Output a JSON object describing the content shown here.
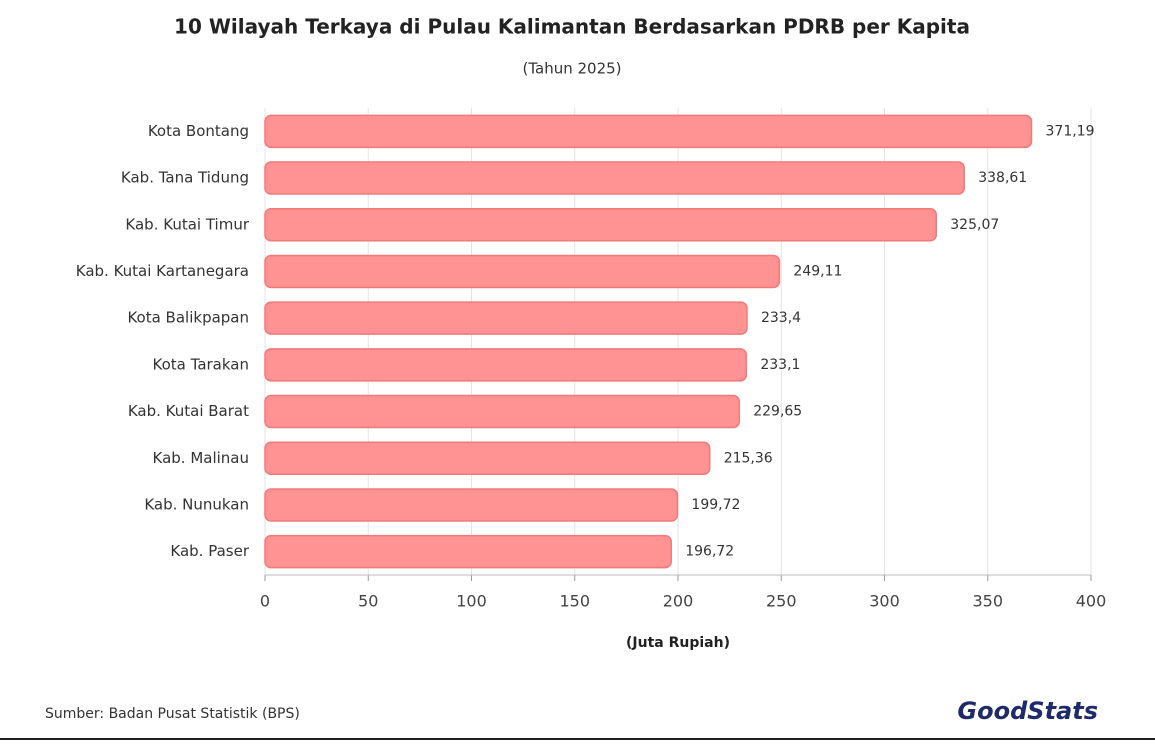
{
  "chart_data": {
    "type": "bar",
    "orientation": "horizontal",
    "title": "10 Wilayah Terkaya di Pulau Kalimantan Berdasarkan PDRB per Kapita",
    "subtitle": "(Tahun 2025)",
    "x_label": "(Juta Rupiah)",
    "categories": [
      "Kota Bontang",
      "Kab. Tana Tidung",
      "Kab. Kutai Timur",
      "Kab. Kutai Kartanegara",
      "Kota Balikpapan",
      "Kota Tarakan",
      "Kab. Kutai Barat",
      "Kab. Malinau",
      "Kab. Nunukan",
      "Kab. Paser"
    ],
    "values": [
      371.19,
      338.61,
      325.07,
      249.11,
      233.4,
      233.1,
      229.65,
      215.36,
      199.72,
      196.72
    ],
    "value_labels": [
      "371,19",
      "338,61",
      "325,07",
      "249,11",
      "233,4",
      "233,1",
      "229,65",
      "215,36",
      "199,72",
      "196,72"
    ],
    "color": "#ff9393",
    "xlim": [
      0,
      400
    ],
    "xticks": [
      0,
      50,
      100,
      150,
      200,
      250,
      300,
      350,
      400
    ],
    "grid": true,
    "source": "Sumber: Badan Pusat Statistik (BPS)",
    "brand": "GoodStats"
  }
}
